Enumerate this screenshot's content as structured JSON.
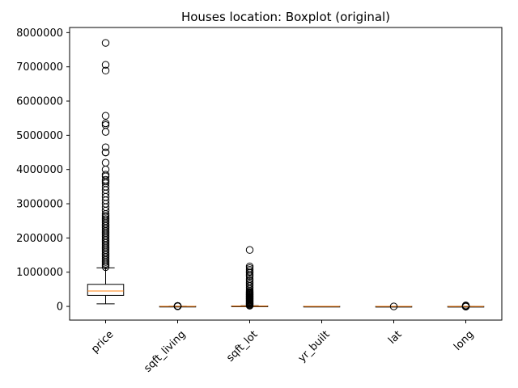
{
  "chart_data": {
    "type": "boxplot",
    "title": "Houses location: Boxplot (original)",
    "xlabel": "",
    "ylabel": "",
    "ylim": [
      -400000,
      8150000
    ],
    "yticks": [
      0,
      1000000,
      2000000,
      3000000,
      4000000,
      5000000,
      6000000,
      7000000,
      8000000
    ],
    "ytick_labels": [
      "0",
      "1000000",
      "2000000",
      "3000000",
      "4000000",
      "5000000",
      "6000000",
      "7000000",
      "8000000"
    ],
    "categories": [
      "price",
      "sqft_living",
      "sqft_lot",
      "yr_built",
      "lat",
      "long"
    ],
    "xtick_rotation": 45,
    "grid": false,
    "colors": {
      "box": "#000000",
      "median": "#ff7f0e",
      "flier": "#000000"
    },
    "boxes": [
      {
        "name": "price",
        "whisker_low": 75000,
        "q1": 322000,
        "median": 450000,
        "q3": 645000,
        "whisker_high": 1127000,
        "outliers": [
          1150000,
          1200000,
          1250000,
          1300000,
          1350000,
          1400000,
          1450000,
          1500000,
          1550000,
          1600000,
          1650000,
          1700000,
          1750000,
          1800000,
          1850000,
          1900000,
          1950000,
          2000000,
          2050000,
          2100000,
          2150000,
          2200000,
          2250000,
          2300000,
          2350000,
          2400000,
          2450000,
          2500000,
          2550000,
          2600000,
          2650000,
          2700000,
          2800000,
          2900000,
          3000000,
          3100000,
          3200000,
          3300000,
          3400000,
          3500000,
          3600000,
          3650000,
          3700000,
          3800000,
          3850000,
          4000000,
          4200000,
          4500000,
          4500000,
          4650000,
          5100000,
          5300000,
          5350000,
          5570000,
          6890000,
          7060000,
          7700000
        ]
      },
      {
        "name": "sqft_living",
        "whisker_low": 290,
        "q1": 1430,
        "median": 1910,
        "q3": 2550,
        "whisker_high": 4230,
        "outliers": [
          4300,
          5000,
          6000,
          7000,
          8000,
          9000,
          10000,
          11000,
          12000,
          13540
        ]
      },
      {
        "name": "sqft_lot",
        "whisker_low": 520,
        "q1": 5040,
        "median": 7620,
        "q3": 10690,
        "whisker_high": 19160,
        "outliers": [
          20000,
          40000,
          60000,
          80000,
          100000,
          120000,
          140000,
          160000,
          180000,
          200000,
          220000,
          240000,
          260000,
          280000,
          300000,
          320000,
          340000,
          360000,
          380000,
          400000,
          420000,
          450000,
          500000,
          550000,
          600000,
          650000,
          700000,
          750000,
          800000,
          880000,
          920000,
          980000,
          1020000,
          1070000,
          1120000,
          1170000,
          1650000
        ]
      },
      {
        "name": "yr_built",
        "whisker_low": 1900,
        "q1": 1951,
        "median": 1975,
        "q3": 1997,
        "whisker_high": 2015,
        "outliers": []
      },
      {
        "name": "lat",
        "whisker_low": 47.16,
        "q1": 47.47,
        "median": 47.57,
        "q3": 47.68,
        "whisker_high": 47.78,
        "outliers": [
          47.16
        ]
      },
      {
        "name": "long",
        "whisker_low": -122.47,
        "q1": -122.33,
        "median": -122.23,
        "q3": -122.13,
        "whisker_high": -121.82,
        "outliers": [
          -121.5,
          -121.3,
          -121.0,
          -120.0,
          -5000,
          15000,
          30000
        ]
      }
    ]
  }
}
